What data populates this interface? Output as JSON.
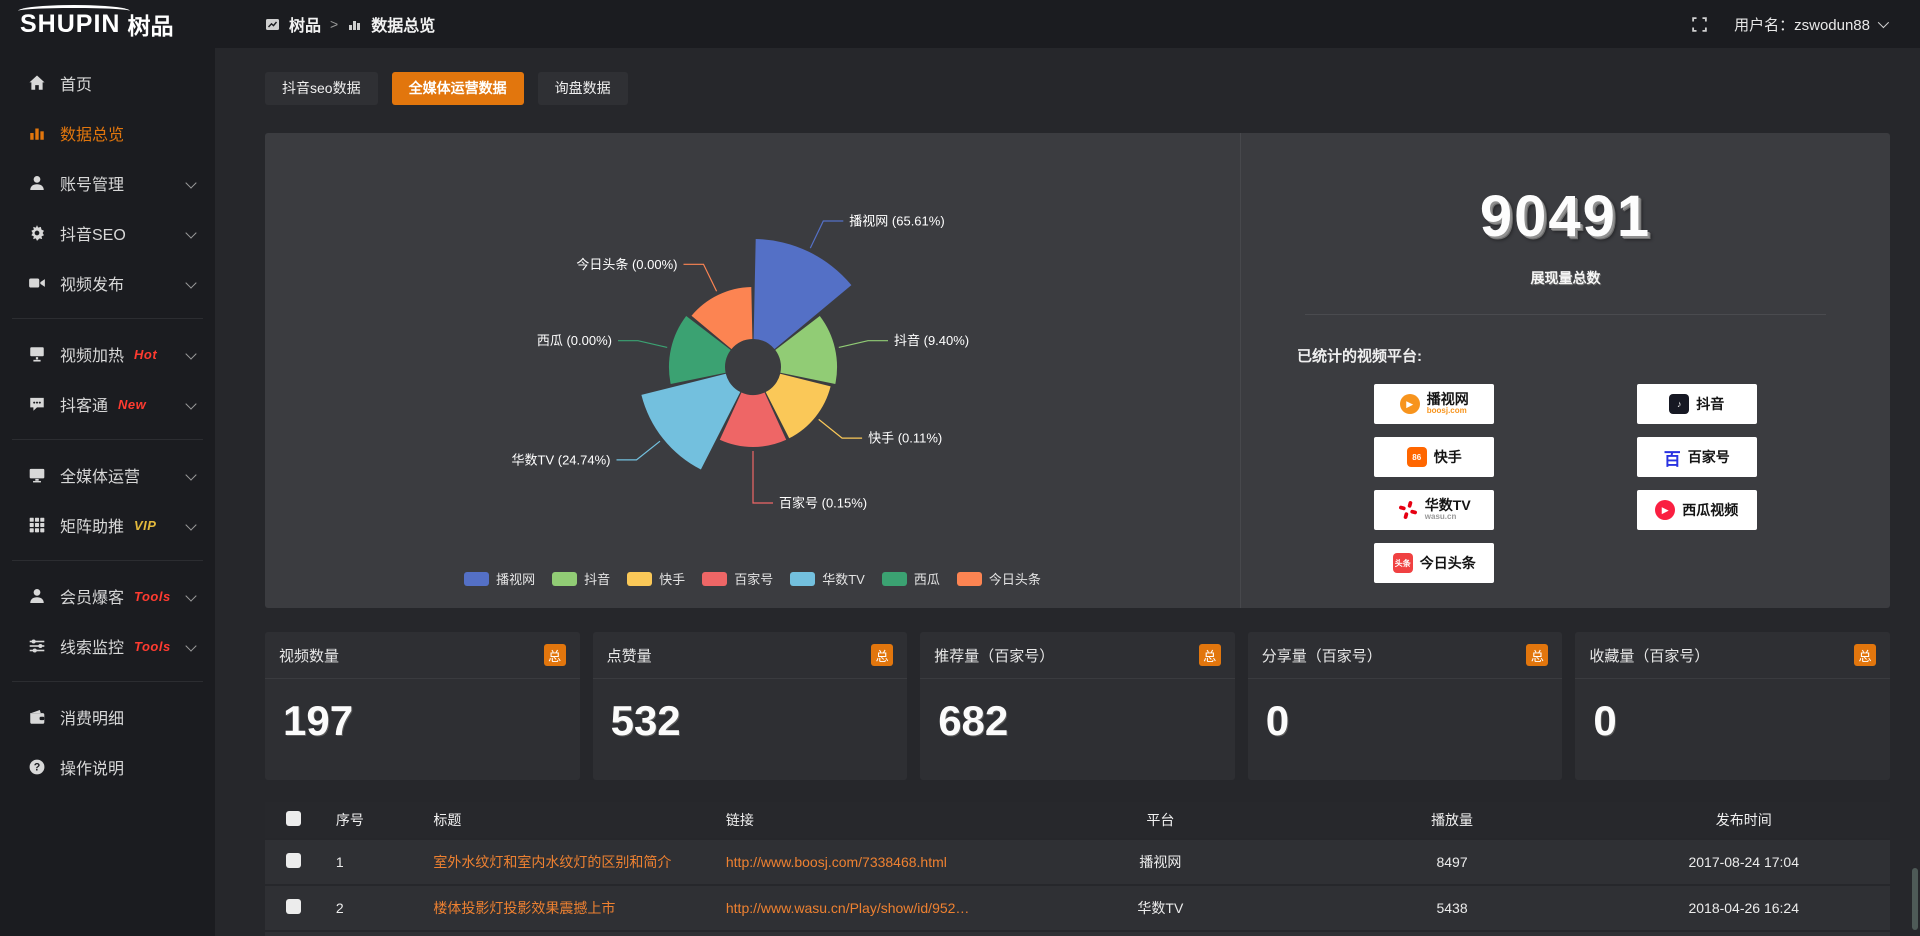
{
  "topbar": {
    "logo_text": "SHUPIN",
    "logo_suffix": "树品",
    "breadcrumb_root": "树品",
    "breadcrumb_sep": ">",
    "breadcrumb_current": "数据总览",
    "username": "用户名：zswodun88"
  },
  "sidebar": {
    "items": [
      {
        "label": "首页",
        "icon": "home-icon",
        "active": false,
        "chevron": false,
        "divider_after": false
      },
      {
        "label": "数据总览",
        "icon": "bar-chart-icon",
        "active": true,
        "chevron": false,
        "divider_after": false
      },
      {
        "label": "账号管理",
        "icon": "user-icon",
        "active": false,
        "chevron": true,
        "divider_after": false
      },
      {
        "label": "抖音SEO",
        "icon": "gear-icon",
        "active": false,
        "chevron": true,
        "divider_after": false
      },
      {
        "label": "视频发布",
        "icon": "video-icon",
        "active": false,
        "chevron": true,
        "divider_after": true
      },
      {
        "label": "视频加热",
        "icon": "screen-icon",
        "active": false,
        "badge": "Hot",
        "badge_color": "#ff3b30",
        "chevron": true,
        "divider_after": false
      },
      {
        "label": "抖客通",
        "icon": "chat-icon",
        "active": false,
        "badge": "New",
        "badge_color": "#ff3b30",
        "chevron": true,
        "divider_after": true
      },
      {
        "label": "全媒体运营",
        "icon": "monitor-icon",
        "active": false,
        "chevron": true,
        "divider_after": false
      },
      {
        "label": "矩阵助推",
        "icon": "grid-icon",
        "active": false,
        "badge": "VIP",
        "badge_color": "#e3b93c",
        "chevron": true,
        "divider_after": true
      },
      {
        "label": "会员爆客",
        "icon": "person-icon",
        "active": false,
        "badge": "Tools",
        "badge_color": "#ff3b30",
        "chevron": true,
        "divider_after": false
      },
      {
        "label": "线索监控",
        "icon": "sliders-icon",
        "active": false,
        "badge": "Tools",
        "badge_color": "#ff3b30",
        "chevron": true,
        "divider_after": true
      },
      {
        "label": "消费明细",
        "icon": "wallet-icon",
        "active": false,
        "chevron": false,
        "divider_after": false
      },
      {
        "label": "操作说明",
        "icon": "help-icon",
        "active": false,
        "chevron": false,
        "divider_after": false
      }
    ]
  },
  "tabs": [
    {
      "label": "抖音seo数据",
      "active": false
    },
    {
      "label": "全媒体运营数据",
      "active": true
    },
    {
      "label": "询盘数据",
      "active": false
    }
  ],
  "chart_data": {
    "type": "pie",
    "variant": "nightingale_rose",
    "legend_position": "bottom",
    "inner_radius": 28,
    "items": [
      {
        "name": "播视网",
        "percent": 65.61,
        "label": "播视网 (65.61%)",
        "color": "#5470c6",
        "radius": 128
      },
      {
        "name": "抖音",
        "percent": 9.4,
        "label": "抖音 (9.40%)",
        "color": "#91cc75",
        "radius": 84
      },
      {
        "name": "快手",
        "percent": 0.11,
        "label": "快手 (0.11%)",
        "color": "#fac858",
        "radius": 80
      },
      {
        "name": "百家号",
        "percent": 0.15,
        "label": "百家号 (0.15%)",
        "color": "#ee6666",
        "radius": 80
      },
      {
        "name": "华数TV",
        "percent": 24.74,
        "label": "华数TV (24.74%)",
        "color": "#73c0de",
        "radius": 115
      },
      {
        "name": "西瓜",
        "percent": 0.0,
        "label": "西瓜 (0.00%)",
        "color": "#3ba272",
        "radius": 84
      },
      {
        "name": "今日头条",
        "percent": 0.0,
        "label": "今日头条 (0.00%)",
        "color": "#fc8452",
        "radius": 80
      }
    ]
  },
  "summary": {
    "total_value": "90491",
    "total_label": "展现量总数",
    "platforms_title": "已统计的视频平台:",
    "platforms_left": [
      {
        "name": "播视网",
        "sub": "boosj.com",
        "sub_color": "#f7941d",
        "icon": "boosj-logo-icon",
        "icon_style": "circle",
        "icon_bg": "#f7941d",
        "glyph": "▶"
      },
      {
        "name": "快手",
        "icon": "kuaishou-logo-icon",
        "icon_style": "square",
        "icon_bg": "#ff6600",
        "glyph": "86"
      },
      {
        "name": "华数TV",
        "sub": "wasu.cn",
        "sub_color": "#999999",
        "icon": "wasu-logo-icon",
        "icon_style": "pinwheel",
        "icon_bg": "#e60012"
      },
      {
        "name": "今日头条",
        "icon": "toutiao-logo-icon",
        "icon_style": "square",
        "icon_bg": "#f04142",
        "glyph": "头条"
      }
    ],
    "platforms_right": [
      {
        "name": "抖音",
        "icon": "douyin-logo-icon",
        "icon_style": "square",
        "icon_bg": "#161823",
        "glyph": "♪"
      },
      {
        "name": "百家号",
        "icon": "baijiahao-logo-icon",
        "icon_style": "text",
        "icon_bg": "transparent",
        "glyph": "百",
        "glyph_color": "#2932e1"
      },
      {
        "name": "西瓜视频",
        "icon": "xigua-logo-icon",
        "icon_style": "circle",
        "icon_bg": "#fa1f41",
        "glyph": "▶"
      }
    ]
  },
  "stat_cards": [
    {
      "title": "视频数量",
      "badge": "总",
      "value": "197"
    },
    {
      "title": "点赞量",
      "badge": "总",
      "value": "532"
    },
    {
      "title": "推荐量（百家号）",
      "badge": "总",
      "value": "682"
    },
    {
      "title": "分享量（百家号）",
      "badge": "总",
      "value": "0"
    },
    {
      "title": "收藏量（百家号）",
      "badge": "总",
      "value": "0"
    }
  ],
  "table": {
    "headers": [
      "序号",
      "标题",
      "链接",
      "平台",
      "播放量",
      "发布时间"
    ],
    "rows": [
      {
        "no": "1",
        "title": "室外水纹灯和室内水纹灯的区别和简介",
        "link": "http://www.boosj.com/7338468.html",
        "platform": "播视网",
        "plays": "8497",
        "time": "2017-08-24 17:04"
      },
      {
        "no": "2",
        "title": "楼体投影灯投影效果震撼上市",
        "link": "http://www.wasu.cn/Play/show/id/952…",
        "platform": "华数TV",
        "plays": "5438",
        "time": "2018-04-26 16:24"
      }
    ]
  }
}
